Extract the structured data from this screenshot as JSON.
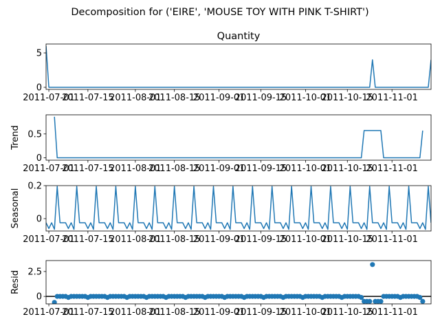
{
  "title": "Decomposition for ('EIRE', 'MOUSE TOY WITH PINK T-SHIRT')",
  "colors": {
    "line": "#1f77b4",
    "resid_zero_line": "#000000",
    "axis": "#000000"
  },
  "chart_data": [
    {
      "type": "line",
      "panel": "observed",
      "title": "Quantity",
      "ylabel": "",
      "ylim": [
        -0.3,
        6.3
      ],
      "yticks": [
        0,
        5
      ],
      "xlim": [
        0,
        138
      ],
      "xticks": [
        1,
        15,
        32,
        46,
        62,
        77,
        93,
        108,
        124
      ],
      "xtick_labels": [
        "2011-07-01",
        "2011-07-15",
        "2011-08-01",
        "2011-08-15",
        "2011-09-01",
        "2011-09-15",
        "2011-10-01",
        "2011-10-15",
        "2011-11-01"
      ],
      "points": [
        [
          0,
          6
        ],
        [
          1,
          0
        ],
        [
          116,
          0
        ],
        [
          117,
          4
        ],
        [
          118,
          0
        ],
        [
          137,
          0
        ],
        [
          138,
          4
        ]
      ]
    },
    {
      "type": "line",
      "panel": "trend",
      "title": "",
      "ylabel": "Trend",
      "ylim": [
        -0.05,
        0.9
      ],
      "yticks": [
        0.0,
        0.5
      ],
      "xlim": [
        0,
        138
      ],
      "xticks": [
        1,
        15,
        32,
        46,
        62,
        77,
        93,
        108,
        124
      ],
      "xtick_labels": [
        "2011-07-01",
        "2011-07-15",
        "2011-08-01",
        "2011-08-15",
        "2011-09-01",
        "2011-09-15",
        "2011-10-01",
        "2011-10-15",
        "2011-11-01"
      ],
      "points": [
        [
          3,
          0.86
        ],
        [
          4,
          0
        ],
        [
          113,
          0
        ],
        [
          114,
          0.57
        ],
        [
          120,
          0.57
        ],
        [
          121,
          0
        ],
        [
          134,
          0
        ],
        [
          135,
          0.57
        ]
      ]
    },
    {
      "type": "line",
      "panel": "seasonal",
      "title": "",
      "ylabel": "Seasonal",
      "ylim": [
        -0.075,
        0.2
      ],
      "yticks": [
        0.0,
        0.2
      ],
      "xlim": [
        0,
        138
      ],
      "xticks": [
        1,
        15,
        32,
        46,
        62,
        77,
        93,
        108,
        124
      ],
      "xtick_labels": [
        "2011-07-01",
        "2011-07-15",
        "2011-08-01",
        "2011-08-15",
        "2011-09-01",
        "2011-09-15",
        "2011-10-01",
        "2011-10-15",
        "2011-11-01"
      ],
      "period": 7,
      "offset": 4,
      "pattern": [
        0.195,
        -0.025,
        -0.025,
        -0.025,
        -0.06,
        -0.025,
        -0.065
      ]
    },
    {
      "type": "scatter",
      "panel": "resid",
      "title": "",
      "ylabel": "Resid",
      "ylim": [
        -0.75,
        3.6
      ],
      "yticks": [
        0.0,
        2.5
      ],
      "xlim": [
        0,
        138
      ],
      "xticks": [
        1,
        15,
        32,
        46,
        62,
        77,
        93,
        108,
        124
      ],
      "xtick_labels": [
        "2011-07-01",
        "2011-07-15",
        "2011-08-01",
        "2011-08-15",
        "2011-09-01",
        "2011-09-15",
        "2011-10-01",
        "2011-10-15",
        "2011-11-01"
      ],
      "zero_line": true,
      "x_start": 3,
      "x_end": 135,
      "base_pattern": [
        0.0,
        -0.1,
        0.0,
        0.0,
        0.0,
        0.0,
        0.0
      ],
      "overrides": [
        [
          3,
          -0.6
        ],
        [
          114,
          -0.5
        ],
        [
          115,
          -0.5
        ],
        [
          116,
          -0.5
        ],
        [
          117,
          3.2
        ],
        [
          118,
          -0.5
        ],
        [
          119,
          -0.5
        ],
        [
          120,
          -0.5
        ],
        [
          135,
          -0.5
        ]
      ]
    }
  ]
}
